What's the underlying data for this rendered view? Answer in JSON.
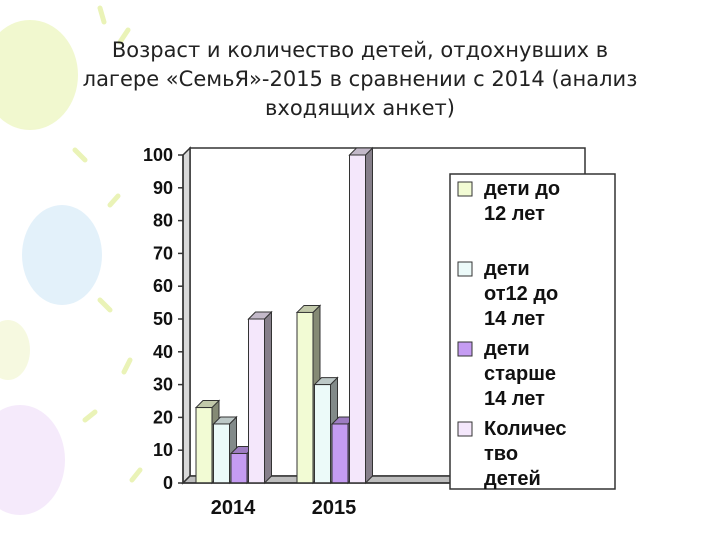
{
  "title_lines": [
    "Возраст и количество детей, отдохнувших в",
    "лагере «СемьЯ»-2015 в сравнении с 2014 (анализ",
    "входящих анкет)"
  ],
  "chart_data": {
    "type": "bar",
    "title": "Возраст и количество детей, отдохнувших в лагере «СемьЯ»-2015 в сравнении с 2014 (анализ входящих анкет)",
    "categories": [
      "2014",
      "2015"
    ],
    "ylim": [
      0,
      100
    ],
    "yticks": [
      0,
      10,
      20,
      30,
      40,
      50,
      60,
      70,
      80,
      90,
      100
    ],
    "grid": false,
    "legend_position": "right",
    "series": [
      {
        "name": "дети до 12 лет",
        "legend_lines": [
          "дети до",
          "12 лет"
        ],
        "values": [
          23,
          52
        ],
        "color": "#f2fbd4"
      },
      {
        "name": "дети от12 до 14 лет",
        "legend_lines": [
          "дети",
          "от12 до",
          "14 лет"
        ],
        "values": [
          18,
          30
        ],
        "color": "#ecfaf9"
      },
      {
        "name": "дети старше 14 лет",
        "legend_lines": [
          "дети",
          "старше",
          "14 лет"
        ],
        "values": [
          9,
          18
        ],
        "color": "#c59cf2"
      },
      {
        "name": "Количество детей",
        "legend_lines": [
          "Количес",
          "тво",
          "детей"
        ],
        "values": [
          50,
          100
        ],
        "color": "#f4e7fb"
      }
    ]
  }
}
